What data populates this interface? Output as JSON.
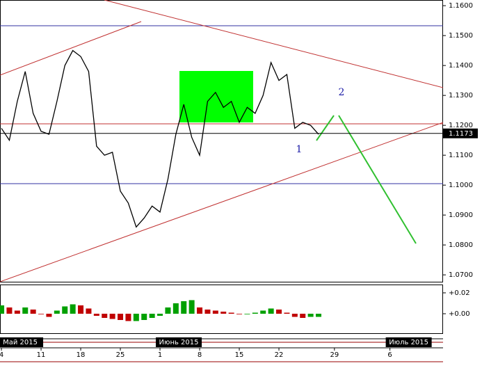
{
  "chart_data": [
    {
      "type": "line",
      "x": [
        0,
        1,
        2,
        3,
        4,
        5,
        6,
        7,
        8,
        9,
        10,
        11,
        12,
        13,
        14,
        15,
        16,
        17,
        18,
        19,
        20,
        21,
        22,
        23,
        24,
        25,
        26,
        27,
        28,
        29,
        30,
        31,
        32,
        33,
        34,
        35,
        36,
        37,
        38,
        39,
        40
      ],
      "series": [
        {
          "color": "#000000",
          "values": [
            1.119,
            1.115,
            1.128,
            1.138,
            1.124,
            1.118,
            1.117,
            1.128,
            1.14,
            1.145,
            1.143,
            1.138,
            1.113,
            1.11,
            1.111,
            1.098,
            1.094,
            1.086,
            1.089,
            1.093,
            1.091,
            1.102,
            1.117,
            1.127,
            1.116,
            1.11,
            1.128,
            1.131,
            1.126,
            1.128,
            1.121,
            1.126,
            1.124,
            1.13,
            1.141,
            1.135,
            1.137,
            1.119,
            1.121,
            1.12,
            1.117
          ]
        }
      ],
      "xlim": [
        -0.18,
        55.7
      ],
      "ylim": [
        1.0677,
        1.1619
      ],
      "yticks": [
        {
          "value": 1.16,
          "label": "1.1600"
        },
        {
          "value": 1.15,
          "label": "1.1500"
        },
        {
          "value": 1.14,
          "label": "1.1400"
        },
        {
          "value": 1.13,
          "label": "1.1300"
        },
        {
          "value": 1.12,
          "label": "1.1200"
        },
        {
          "value": 1.11,
          "label": "1.1100"
        },
        {
          "value": 1.1,
          "label": "1.1000"
        },
        {
          "value": 1.09,
          "label": "1.0900"
        },
        {
          "value": 1.08,
          "label": "1.0800"
        },
        {
          "value": 1.07,
          "label": "1.0700"
        }
      ],
      "xticks": [
        {
          "value": 0,
          "label": "4"
        },
        {
          "value": 5,
          "label": "11"
        },
        {
          "value": 10,
          "label": "18"
        },
        {
          "value": 15,
          "label": "25"
        },
        {
          "value": 20,
          "label": "1"
        },
        {
          "value": 25,
          "label": "8"
        },
        {
          "value": 30,
          "label": "15"
        },
        {
          "value": 35,
          "label": "22"
        },
        {
          "value": 42,
          "label": "29"
        },
        {
          "value": 49,
          "label": "6"
        }
      ],
      "period_ticks": [
        {
          "value": 0,
          "label": "Май 2015"
        },
        {
          "value": 20,
          "label": "Июнь 2015"
        },
        {
          "value": 49,
          "label": "Июль 2015"
        }
      ],
      "last_price": {
        "value": 1.1173,
        "label": "1.1173"
      },
      "annotations": [
        "1",
        "2"
      ]
    },
    {
      "type": "bar",
      "values": [
        0.008,
        0.006,
        0.003,
        0.006,
        0.004,
        0.0,
        -0.003,
        0.003,
        0.007,
        0.009,
        0.008,
        0.005,
        -0.002,
        -0.004,
        -0.005,
        -0.006,
        -0.007,
        -0.007,
        -0.006,
        -0.004,
        -0.002,
        0.006,
        0.01,
        0.012,
        0.013,
        0.006,
        0.004,
        0.003,
        0.002,
        0.001,
        0.0,
        0.0,
        0.001,
        0.003,
        0.005,
        0.004,
        0.001,
        -0.003,
        -0.004,
        -0.003,
        -0.003
      ],
      "up_color": "#00a000",
      "down_color": "#c00000",
      "ylim": [
        -0.018,
        0.0273
      ],
      "yticks": [
        {
          "value": 0.02,
          "label": "+0.02"
        },
        {
          "value": 0,
          "label": "+0.00"
        }
      ]
    }
  ]
}
